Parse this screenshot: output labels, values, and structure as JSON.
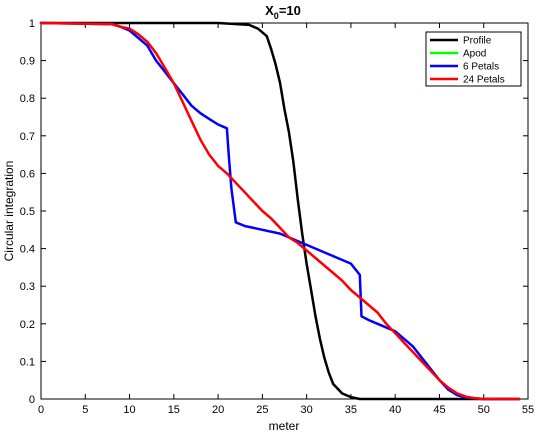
{
  "chart_data": {
    "type": "line",
    "title": {
      "base": "X",
      "sub": "0",
      "rest": "=10"
    },
    "xlabel": "meter",
    "ylabel": "Circular integration",
    "xlim": [
      0,
      55
    ],
    "ylim": [
      0,
      1
    ],
    "xticks": [
      0,
      5,
      10,
      15,
      20,
      25,
      30,
      35,
      40,
      45,
      50,
      55
    ],
    "yticks": [
      0,
      0.1,
      0.2,
      0.3,
      0.4,
      0.5,
      0.6,
      0.7,
      0.8,
      0.9,
      1
    ],
    "ytick_labels": [
      "0",
      "0.1",
      "0.2",
      "0.3",
      "0.4",
      "0.5",
      "0.6",
      "0.7",
      "0.8",
      "0.9",
      "1"
    ],
    "grid": false,
    "legend_position": "top-right",
    "series": [
      {
        "name": "Profile",
        "color": "#000000",
        "points": [
          [
            0,
            1
          ],
          [
            20,
            1
          ],
          [
            23.5,
            0.995
          ],
          [
            24.5,
            0.985
          ],
          [
            25.5,
            0.965
          ],
          [
            26,
            0.93
          ],
          [
            26.5,
            0.89
          ],
          [
            27,
            0.84
          ],
          [
            27.5,
            0.77
          ],
          [
            28,
            0.71
          ],
          [
            28.5,
            0.63
          ],
          [
            29,
            0.53
          ],
          [
            29.5,
            0.44
          ],
          [
            30,
            0.36
          ],
          [
            30.5,
            0.29
          ],
          [
            31,
            0.22
          ],
          [
            31.5,
            0.16
          ],
          [
            32,
            0.11
          ],
          [
            32.5,
            0.07
          ],
          [
            33,
            0.04
          ],
          [
            34,
            0.015
          ],
          [
            35,
            0.005
          ],
          [
            36,
            0
          ],
          [
            54,
            0
          ]
        ]
      },
      {
        "name": "Apod",
        "color": "#00ff00",
        "points": []
      },
      {
        "name": "6 Petals",
        "color": "#0000ff",
        "points": [
          [
            0,
            1
          ],
          [
            8,
            0.997
          ],
          [
            9,
            0.99
          ],
          [
            10,
            0.98
          ],
          [
            11,
            0.96
          ],
          [
            12,
            0.94
          ],
          [
            13,
            0.9
          ],
          [
            14,
            0.87
          ],
          [
            15,
            0.84
          ],
          [
            16,
            0.81
          ],
          [
            17,
            0.78
          ],
          [
            18,
            0.76
          ],
          [
            19,
            0.745
          ],
          [
            20,
            0.73
          ],
          [
            21,
            0.72
          ],
          [
            21.2,
            0.65
          ],
          [
            21.5,
            0.56
          ],
          [
            22,
            0.47
          ],
          [
            23,
            0.46
          ],
          [
            25,
            0.45
          ],
          [
            27,
            0.44
          ],
          [
            29,
            0.42
          ],
          [
            31,
            0.4
          ],
          [
            33,
            0.38
          ],
          [
            35,
            0.36
          ],
          [
            36,
            0.33
          ],
          [
            36.2,
            0.22
          ],
          [
            37,
            0.21
          ],
          [
            38,
            0.2
          ],
          [
            40,
            0.18
          ],
          [
            41,
            0.16
          ],
          [
            42,
            0.14
          ],
          [
            43,
            0.11
          ],
          [
            44,
            0.08
          ],
          [
            45,
            0.05
          ],
          [
            46,
            0.025
          ],
          [
            47,
            0.01
          ],
          [
            48,
            0.004
          ],
          [
            50,
            0
          ],
          [
            54,
            0
          ]
        ]
      },
      {
        "name": "24 Petals",
        "color": "#ff0000",
        "points": [
          [
            0,
            1
          ],
          [
            8,
            0.997
          ],
          [
            9,
            0.99
          ],
          [
            10,
            0.985
          ],
          [
            11,
            0.97
          ],
          [
            12,
            0.95
          ],
          [
            13,
            0.92
          ],
          [
            14,
            0.88
          ],
          [
            15,
            0.84
          ],
          [
            16,
            0.79
          ],
          [
            17,
            0.74
          ],
          [
            18,
            0.69
          ],
          [
            19,
            0.65
          ],
          [
            20,
            0.62
          ],
          [
            21,
            0.6
          ],
          [
            22,
            0.575
          ],
          [
            23,
            0.55
          ],
          [
            24,
            0.525
          ],
          [
            25,
            0.5
          ],
          [
            26,
            0.48
          ],
          [
            27,
            0.455
          ],
          [
            28,
            0.43
          ],
          [
            29,
            0.415
          ],
          [
            30,
            0.395
          ],
          [
            31,
            0.375
          ],
          [
            32,
            0.355
          ],
          [
            33,
            0.335
          ],
          [
            34,
            0.315
          ],
          [
            35,
            0.29
          ],
          [
            36,
            0.27
          ],
          [
            37,
            0.25
          ],
          [
            38,
            0.23
          ],
          [
            39,
            0.2
          ],
          [
            40,
            0.175
          ],
          [
            41,
            0.15
          ],
          [
            42,
            0.125
          ],
          [
            43,
            0.1
          ],
          [
            44,
            0.075
          ],
          [
            45,
            0.05
          ],
          [
            46,
            0.03
          ],
          [
            47,
            0.015
          ],
          [
            48,
            0.006
          ],
          [
            49,
            0.002
          ],
          [
            50,
            0
          ],
          [
            54,
            0
          ]
        ]
      }
    ]
  }
}
